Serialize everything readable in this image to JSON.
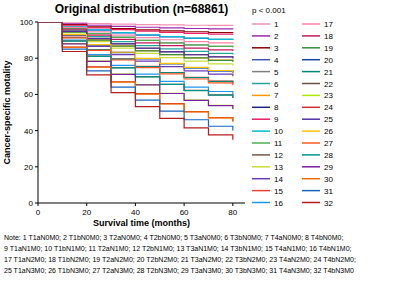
{
  "chart_data": {
    "type": "step",
    "title": "Original distribution (n=68861)",
    "x_label": "Survival time (months)",
    "y_label": "Cancer-specific motality",
    "annotation": "p < 0.001",
    "xlim": [
      0,
      85
    ],
    "xticks": [
      0,
      20,
      40,
      60,
      80
    ],
    "ylim": [
      0,
      100
    ],
    "yticks": [
      0,
      20,
      40,
      60,
      80,
      100
    ],
    "legend": "right",
    "grid": false,
    "x": [
      0,
      10,
      20,
      30,
      40,
      50,
      60,
      70,
      80
    ],
    "series": [
      {
        "name": "1",
        "color": "#f48fb1",
        "values": [
          100,
          99.5,
          99.1,
          98.8,
          98.6,
          98.4,
          98.2,
          98.1,
          98
        ]
      },
      {
        "name": "2",
        "color": "#9c27b0",
        "values": [
          100,
          99,
          98.2,
          97.6,
          97.1,
          96.7,
          96.4,
          96.2,
          96
        ]
      },
      {
        "name": "3",
        "color": "#8b0000",
        "values": [
          100,
          98.5,
          97.3,
          96.4,
          95.7,
          95.1,
          94.6,
          94.2,
          94
        ]
      },
      {
        "name": "4",
        "color": "#3f51b5",
        "values": [
          100,
          97.5,
          95.5,
          94,
          92.8,
          91.8,
          91,
          90.4,
          90
        ]
      },
      {
        "name": "5",
        "color": "#808080",
        "values": [
          100,
          96.5,
          93.7,
          91.6,
          89.9,
          88.5,
          87.4,
          86.6,
          86
        ]
      },
      {
        "name": "6",
        "color": "#26a69a",
        "values": [
          100,
          95.5,
          91.9,
          89.2,
          87,
          85.2,
          83.8,
          82.7,
          82
        ]
      },
      {
        "name": "7",
        "color": "#ff9800",
        "values": [
          100,
          94.5,
          90.1,
          86.8,
          84.2,
          82,
          80.2,
          78.9,
          78
        ]
      },
      {
        "name": "8",
        "color": "#1a237e",
        "values": [
          100,
          93,
          87.4,
          83.2,
          79.8,
          77,
          74.8,
          73.1,
          72
        ]
      },
      {
        "name": "9",
        "color": "#e91e63",
        "values": [
          100,
          98.2,
          96.8,
          95.8,
          95,
          94.3,
          93.7,
          93.3,
          93
        ]
      },
      {
        "name": "10",
        "color": "#00bcd4",
        "values": [
          100,
          97.4,
          95.6,
          94.1,
          92.9,
          91.9,
          91.1,
          90.4,
          90
        ]
      },
      {
        "name": "11",
        "color": "#4caf50",
        "values": [
          100,
          96.4,
          93.6,
          91.5,
          89.8,
          88.4,
          87.3,
          86.5,
          86
        ]
      },
      {
        "name": "12",
        "color": "#795548",
        "values": [
          100,
          95,
          91,
          88,
          85.6,
          83.6,
          82,
          80.8,
          80
        ]
      },
      {
        "name": "13",
        "color": "#cddc39",
        "values": [
          100,
          94,
          89.2,
          85.6,
          82.7,
          80.3,
          78.4,
          76.9,
          76
        ]
      },
      {
        "name": "14",
        "color": "#673ab7",
        "values": [
          100,
          92.5,
          86.5,
          82,
          78.4,
          75.4,
          73,
          71.2,
          70
        ]
      },
      {
        "name": "15",
        "color": "#f44336",
        "values": [
          100,
          91.5,
          84.7,
          79.6,
          75.5,
          72.1,
          69.4,
          67.4,
          66
        ]
      },
      {
        "name": "16",
        "color": "#2196f3",
        "values": [
          100,
          90,
          82,
          76,
          71.2,
          67.2,
          64,
          61.6,
          60
        ]
      },
      {
        "name": "17",
        "color": "#ff80ab",
        "values": [
          100,
          97,
          94.6,
          92.8,
          91.4,
          90.2,
          89.2,
          88.5,
          88
        ]
      },
      {
        "name": "18",
        "color": "#c2185b",
        "values": [
          100,
          96,
          92.8,
          90.4,
          88.5,
          86.9,
          85.6,
          84.6,
          84
        ]
      },
      {
        "name": "19",
        "color": "#388e3c",
        "values": [
          100,
          94.4,
          90,
          86.7,
          84.1,
          82,
          80.2,
          78.8,
          78
        ]
      },
      {
        "name": "20",
        "color": "#0d47a1",
        "values": [
          100,
          92.9,
          87.3,
          83.1,
          79.8,
          77,
          74.7,
          73,
          72
        ]
      },
      {
        "name": "21",
        "color": "#00897b",
        "values": [
          100,
          91.4,
          84.6,
          79.5,
          75.4,
          72,
          69.3,
          67.2,
          66
        ]
      },
      {
        "name": "22",
        "color": "#6d4c41",
        "values": [
          100,
          89.5,
          81.1,
          74.8,
          69.8,
          65.6,
          62.2,
          59.7,
          58
        ]
      },
      {
        "name": "23",
        "color": "#aeea00",
        "values": [
          100,
          88,
          78.4,
          71.2,
          65.4,
          60.6,
          56.8,
          53.9,
          52
        ]
      },
      {
        "name": "24",
        "color": "#d32f2f",
        "values": [
          100,
          86.2,
          75.2,
          67,
          60.4,
          54.9,
          50.5,
          47.2,
          45
        ]
      },
      {
        "name": "25",
        "color": "#512da8",
        "values": [
          100,
          94.8,
          90.8,
          87.9,
          85.5,
          83.5,
          81.9,
          80.7,
          80
        ]
      },
      {
        "name": "26",
        "color": "#ffc107",
        "values": [
          100,
          93,
          87.5,
          83.3,
          79.9,
          77.1,
          74.9,
          73.2,
          72
        ]
      },
      {
        "name": "27",
        "color": "#ff5722",
        "values": [
          100,
          91.2,
          84.3,
          79,
          74.8,
          71.3,
          68.5,
          66.4,
          65
        ]
      },
      {
        "name": "28",
        "color": "#009688",
        "values": [
          100,
          89.4,
          81,
          74.7,
          69.7,
          65.5,
          62.1,
          59.6,
          58
        ]
      },
      {
        "name": "29",
        "color": "#7b1fa2",
        "values": [
          100,
          87.9,
          78.3,
          71.1,
          65.3,
          60.5,
          56.7,
          53.8,
          52
        ]
      },
      {
        "name": "30",
        "color": "#ef6c00",
        "values": [
          100,
          86,
          75,
          66.8,
          60.2,
          54.7,
          50.3,
          47,
          45
        ]
      },
      {
        "name": "31",
        "color": "#1565c0",
        "values": [
          100,
          85,
          73,
          64,
          56.8,
          50.8,
          46,
          42.4,
          40
        ]
      },
      {
        "name": "32",
        "color": "#b71c1c",
        "values": [
          100,
          83.7,
          70.8,
          61,
          53.2,
          46.7,
          41.5,
          37.6,
          35
        ]
      }
    ],
    "note": [
      "Note: 1 T1aN0M0; 2 T1bN0M0; 3 T2aN0M0; 4 T2bN0M0; 5 T3aN0M0; 6 T3bN0M0; 7 T4aN0M0; 8 T4bN0M0;",
      "9 T1aN1M0; 10 T1bN1M0; 11 T2aN1M0; 12 T2bN1M0; 13 T3aN1M0; 14 T3bN1M0; 15 T4aN1M0; 16 T4bN1M0;",
      "17 T1aN2M0; 18 T1bN2M0; 19 T2aN2M0; 20 T2bN2M0; 21 T3aN2M0; 22 T3bN2M0; 23 T4aN2M0; 24 T4bN2M0;",
      "25 T1aN3M0; 26 T1bN3M0; 27 T2aN3M0; 28 T2bN3M0; 29 T3aN3M0; 30 T3bN3M0; 31 T4aN3M0; 32 T4bN3M0"
    ]
  }
}
